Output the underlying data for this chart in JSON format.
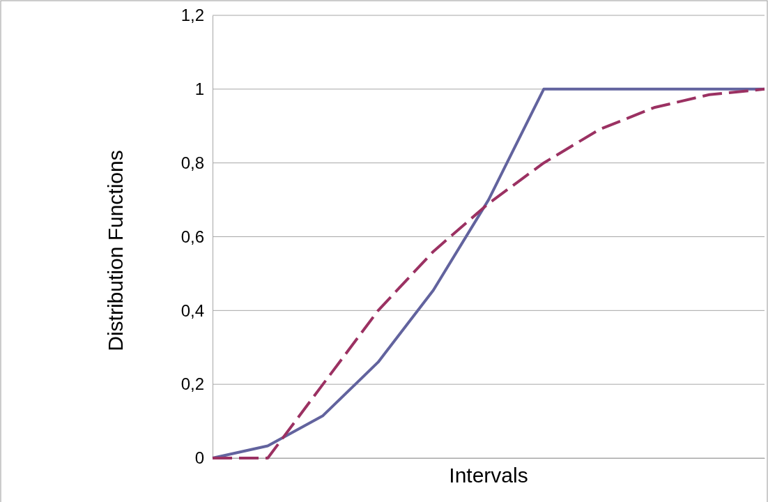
{
  "chart_data": {
    "type": "line",
    "xlabel": "Intervals",
    "ylabel": "Distribution Functions",
    "categories": [
      null,
      null,
      null,
      null,
      null,
      null,
      null,
      null,
      null,
      null,
      null
    ],
    "series": [
      {
        "color": "#62639e",
        "line_style": "solid",
        "values": [
          0,
          0.033,
          0.115,
          0.26,
          0.455,
          0.7,
          1,
          1,
          1,
          1,
          1
        ]
      },
      {
        "color": "#9b3162",
        "line_style": "dashed",
        "values": [
          0,
          0,
          0.2,
          0.4,
          0.56,
          0.69,
          0.8,
          0.89,
          0.95,
          0.985,
          1
        ]
      }
    ],
    "ylim": [
      0,
      1.2
    ],
    "yticks": [
      0,
      {
        "value": 0.2,
        "label": "0,2"
      },
      {
        "value": 0.4,
        "label": "0,4"
      },
      {
        "value": 0.6,
        "label": "0,6"
      },
      {
        "value": 0.8,
        "label": "0,8"
      },
      1,
      {
        "value": 1.2,
        "label": "1,2"
      }
    ],
    "grid": "y",
    "tick_labels": "y",
    "legend": false,
    "marker": "none"
  }
}
